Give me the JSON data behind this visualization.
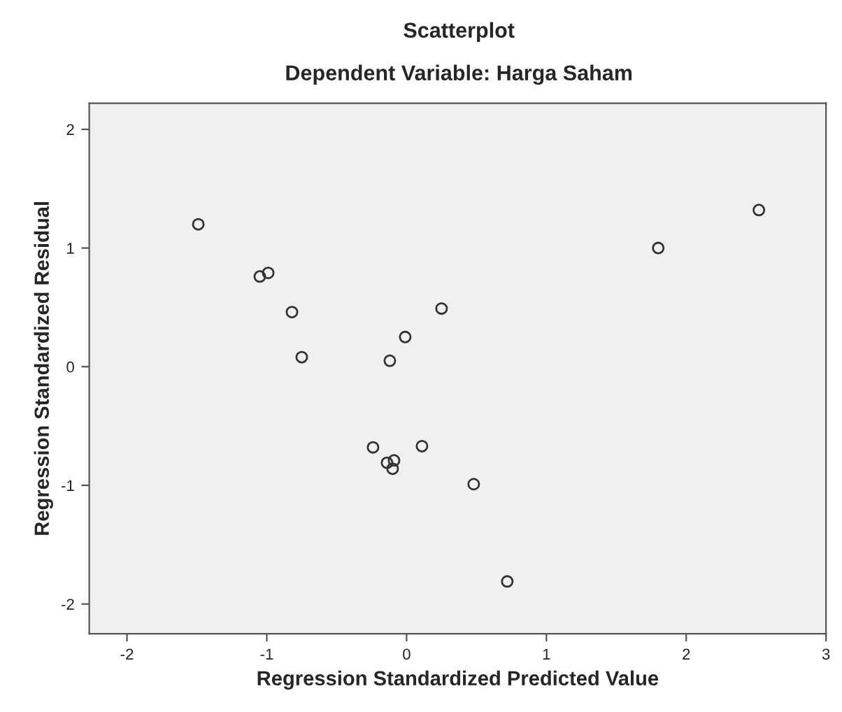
{
  "chart_data": {
    "type": "scatter",
    "title": "Scatterplot",
    "subtitle": "Dependent Variable: Harga Saham",
    "xlabel": "Regression Standardized Predicted Value",
    "ylabel": "Regression Standardized Residual",
    "series": [
      {
        "color": "#333333",
        "x": [
          -1.49,
          -1.05,
          -0.99,
          -0.82,
          -0.75,
          -0.12,
          -0.01,
          0.25,
          -0.24,
          -0.14,
          -0.09,
          -0.1,
          0.11,
          0.48,
          0.72,
          1.8,
          2.52
        ],
        "values": [
          1.2,
          0.76,
          0.79,
          0.46,
          0.08,
          0.05,
          0.25,
          0.49,
          -0.68,
          -0.81,
          -0.79,
          -0.86,
          -0.67,
          -0.99,
          -1.81,
          1.0,
          1.32
        ]
      }
    ],
    "xlim": [
      -2.27,
      3.0
    ],
    "ylim": [
      -2.25,
      2.22
    ],
    "xticks": [
      -2,
      -1,
      0,
      1,
      2,
      3
    ],
    "yticks": [
      -2,
      -1,
      0,
      1,
      2
    ],
    "marker": "circle",
    "grid": false,
    "legend": false
  }
}
